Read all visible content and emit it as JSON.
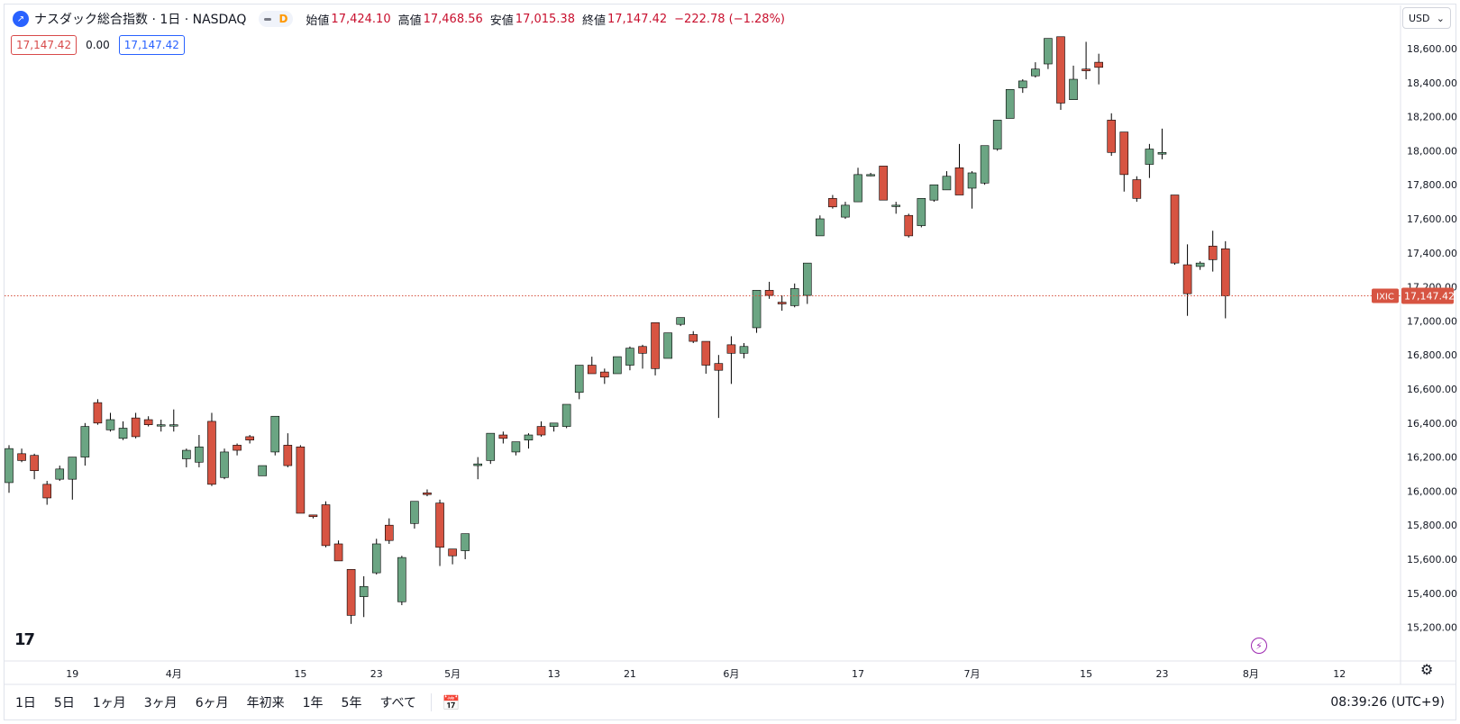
{
  "legend": {
    "title": "ナスダック総合指数 · 1日 · NASDAQ",
    "interval_badge": "D",
    "open_label": "始値",
    "open_value": "17,424.10",
    "high_label": "高値",
    "high_value": "17,468.56",
    "low_label": "安値",
    "low_value": "17,015.38",
    "close_label": "終値",
    "close_value": "17,147.42",
    "change": "−222.78 (−1.28%)"
  },
  "trade": {
    "sell": "17,147.42",
    "spread": "0.00",
    "buy": "17,147.42"
  },
  "currency": "USD",
  "timezone_clock": "08:39:26 (UTC+9)",
  "ranges": [
    "1日",
    "5日",
    "1ヶ月",
    "3ヶ月",
    "6ヶ月",
    "年初来",
    "1年",
    "5年",
    "すべて"
  ],
  "colors": {
    "up": "#6ba583",
    "down": "#d75442",
    "up_wick": "#000000",
    "price_line": "#d75442"
  },
  "icons": [
    "tradingview-logo",
    "flash-icon",
    "gear-icon",
    "calendar-icon",
    "chevron-down-icon"
  ],
  "chart_data": {
    "type": "candlestick",
    "symbol_tag": "IXIC",
    "last_price": "17,147.42",
    "last_price_value": 17147.42,
    "ylim": [
      15050,
      18750
    ],
    "y_ticks": [
      15200,
      15400,
      15600,
      15800,
      16000,
      16200,
      16400,
      16600,
      16800,
      17000,
      17200,
      17400,
      17600,
      17800,
      18000,
      18200,
      18400,
      18600
    ],
    "y_tick_labels": [
      "15,200.00",
      "15,400.00",
      "15,600.00",
      "15,800.00",
      "16,000.00",
      "16,200.00",
      "16,400.00",
      "16,600.00",
      "16,800.00",
      "17,000.00",
      "17,200.00",
      "17,400.00",
      "17,600.00",
      "17,800.00",
      "18,000.00",
      "18,200.00",
      "18,400.00",
      "18,600.00"
    ],
    "x_ticks": [
      {
        "label": "19",
        "index": 5
      },
      {
        "label": "4月",
        "index": 13
      },
      {
        "label": "15",
        "index": 23
      },
      {
        "label": "23",
        "index": 29
      },
      {
        "label": "5月",
        "index": 35
      },
      {
        "label": "13",
        "index": 43
      },
      {
        "label": "21",
        "index": 49
      },
      {
        "label": "6月",
        "index": 57
      },
      {
        "label": "17",
        "index": 67
      },
      {
        "label": "7月",
        "index": 76
      },
      {
        "label": "15",
        "index": 85
      },
      {
        "label": "23",
        "index": 91
      },
      {
        "label": "8月",
        "index": 98
      },
      {
        "label": "12",
        "index": 105
      }
    ],
    "candles": [
      [
        16050,
        16270,
        15990,
        16250
      ],
      [
        16220,
        16250,
        16170,
        16180
      ],
      [
        16210,
        16220,
        16070,
        16120
      ],
      [
        16040,
        16060,
        15920,
        15960
      ],
      [
        16070,
        16150,
        16060,
        16130
      ],
      [
        16070,
        16200,
        15950,
        16200
      ],
      [
        16200,
        16400,
        16150,
        16380
      ],
      [
        16520,
        16540,
        16390,
        16400
      ],
      [
        16360,
        16460,
        16350,
        16420
      ],
      [
        16310,
        16410,
        16300,
        16370
      ],
      [
        16430,
        16460,
        16310,
        16320
      ],
      [
        16420,
        16440,
        16380,
        16390
      ],
      [
        16390,
        16420,
        16350,
        16390
      ],
      [
        16390,
        16480,
        16350,
        16390
      ],
      [
        16190,
        16250,
        16140,
        16240
      ],
      [
        16170,
        16330,
        16140,
        16260
      ],
      [
        16410,
        16460,
        16030,
        16040
      ],
      [
        16080,
        16250,
        16070,
        16230
      ],
      [
        16270,
        16280,
        16210,
        16240
      ],
      [
        16320,
        16330,
        16280,
        16300
      ],
      [
        16090,
        16150,
        16090,
        16150
      ],
      [
        16230,
        16440,
        16210,
        16440
      ],
      [
        16270,
        16340,
        16140,
        16150
      ],
      [
        16260,
        16270,
        15870,
        15870
      ],
      [
        15860,
        15860,
        15840,
        15850
      ],
      [
        15920,
        15940,
        15670,
        15680
      ],
      [
        15690,
        15710,
        15590,
        15590
      ],
      [
        15540,
        15540,
        15220,
        15270
      ],
      [
        15380,
        15500,
        15260,
        15440
      ],
      [
        15520,
        15720,
        15510,
        15690
      ],
      [
        15800,
        15840,
        15690,
        15710
      ],
      [
        15350,
        15620,
        15330,
        15610
      ],
      [
        15810,
        15940,
        15780,
        15940
      ],
      [
        15990,
        16010,
        15970,
        15980
      ],
      [
        15930,
        15950,
        15560,
        15670
      ],
      [
        15660,
        15660,
        15570,
        15620
      ],
      [
        15650,
        15750,
        15600,
        15750
      ],
      [
        16150,
        16200,
        16070,
        16160
      ],
      [
        16180,
        16340,
        16160,
        16340
      ],
      [
        16330,
        16350,
        16280,
        16310
      ],
      [
        16230,
        16290,
        16210,
        16290
      ],
      [
        16300,
        16340,
        16250,
        16330
      ],
      [
        16380,
        16410,
        16320,
        16330
      ],
      [
        16380,
        16400,
        16350,
        16400
      ],
      [
        16380,
        16510,
        16370,
        16510
      ],
      [
        16580,
        16740,
        16540,
        16740
      ],
      [
        16740,
        16790,
        16690,
        16690
      ],
      [
        16700,
        16720,
        16630,
        16670
      ],
      [
        16690,
        16790,
        16690,
        16790
      ],
      [
        16740,
        16850,
        16710,
        16840
      ],
      [
        16850,
        16860,
        16720,
        16810
      ],
      [
        16990,
        16990,
        16680,
        16720
      ],
      [
        16780,
        16930,
        16780,
        16930
      ],
      [
        16980,
        17020,
        16970,
        17020
      ],
      [
        16920,
        16940,
        16870,
        16880
      ],
      [
        16880,
        16880,
        16690,
        16740
      ],
      [
        16750,
        16800,
        16430,
        16710
      ],
      [
        16860,
        16910,
        16630,
        16810
      ],
      [
        16810,
        16870,
        16780,
        16850
      ],
      [
        16960,
        17180,
        16930,
        17180
      ],
      [
        17180,
        17230,
        17130,
        17150
      ],
      [
        17110,
        17150,
        17060,
        17100
      ],
      [
        17090,
        17220,
        17080,
        17190
      ],
      [
        17150,
        17340,
        17100,
        17340
      ],
      [
        17500,
        17620,
        17500,
        17600
      ],
      [
        17720,
        17740,
        17660,
        17670
      ],
      [
        17610,
        17700,
        17600,
        17680
      ],
      [
        17700,
        17900,
        17700,
        17860
      ],
      [
        17860,
        17870,
        17850,
        17860
      ],
      [
        17910,
        17910,
        17710,
        17710
      ],
      [
        17680,
        17700,
        17630,
        17680
      ],
      [
        17620,
        17630,
        17490,
        17500
      ],
      [
        17560,
        17720,
        17550,
        17720
      ],
      [
        17710,
        17800,
        17700,
        17800
      ],
      [
        17770,
        17880,
        17770,
        17850
      ],
      [
        17900,
        18040,
        17750,
        17740
      ],
      [
        17780,
        17880,
        17660,
        17870
      ],
      [
        17810,
        18030,
        17800,
        18030
      ],
      [
        18010,
        18180,
        18000,
        18180
      ],
      [
        18190,
        18360,
        18190,
        18360
      ],
      [
        18370,
        18420,
        18340,
        18410
      ],
      [
        18440,
        18520,
        18430,
        18480
      ],
      [
        18510,
        18660,
        18480,
        18660
      ],
      [
        18670,
        18670,
        18240,
        18280
      ],
      [
        18300,
        18500,
        18300,
        18420
      ],
      [
        18480,
        18640,
        18420,
        18470
      ],
      [
        18520,
        18570,
        18390,
        18490
      ],
      [
        18180,
        18220,
        17970,
        17990
      ],
      [
        18110,
        18110,
        17760,
        17860
      ],
      [
        17830,
        17850,
        17700,
        17720
      ],
      [
        17920,
        18040,
        17840,
        18010
      ],
      [
        17980,
        18130,
        17950,
        17990
      ],
      [
        17740,
        17740,
        17330,
        17340
      ],
      [
        17330,
        17450,
        17030,
        17160
      ],
      [
        17320,
        17350,
        17300,
        17340
      ],
      [
        17440,
        17530,
        17290,
        17360
      ],
      [
        17424.1,
        17468.56,
        17015.38,
        17147.42
      ]
    ]
  }
}
